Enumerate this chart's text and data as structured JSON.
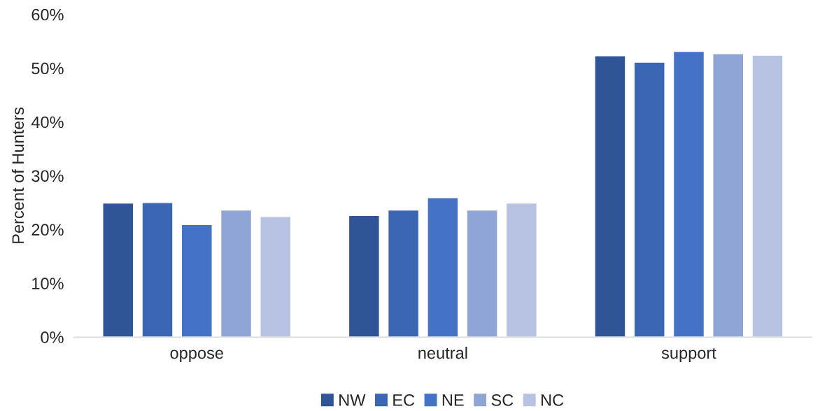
{
  "chart_data": {
    "type": "bar",
    "ylabel": "Percent of Hunters",
    "categories": [
      "oppose",
      "neutral",
      "support"
    ],
    "series": [
      {
        "name": "NW",
        "color": "#2f5597",
        "values": [
          24.9,
          22.6,
          52.3
        ]
      },
      {
        "name": "EC",
        "color": "#3a66b3",
        "values": [
          25.0,
          23.6,
          51.1
        ]
      },
      {
        "name": "NE",
        "color": "#4472c4",
        "values": [
          20.9,
          25.9,
          53.1
        ]
      },
      {
        "name": "SC",
        "color": "#8fa5d6",
        "values": [
          23.6,
          23.6,
          52.7
        ]
      },
      {
        "name": "NC",
        "color": "#b8c3e3",
        "values": [
          22.4,
          24.9,
          52.4
        ]
      }
    ],
    "ylim": [
      0,
      60
    ],
    "yticks": [
      {
        "value": 0,
        "label": "0%"
      },
      {
        "value": 10,
        "label": "10%"
      },
      {
        "value": 20,
        "label": "20%"
      },
      {
        "value": 30,
        "label": "30%"
      },
      {
        "value": 40,
        "label": "40%"
      },
      {
        "value": 50,
        "label": "50%"
      },
      {
        "value": 60,
        "label": "60%"
      }
    ],
    "grid": false,
    "legend": "bottom"
  }
}
